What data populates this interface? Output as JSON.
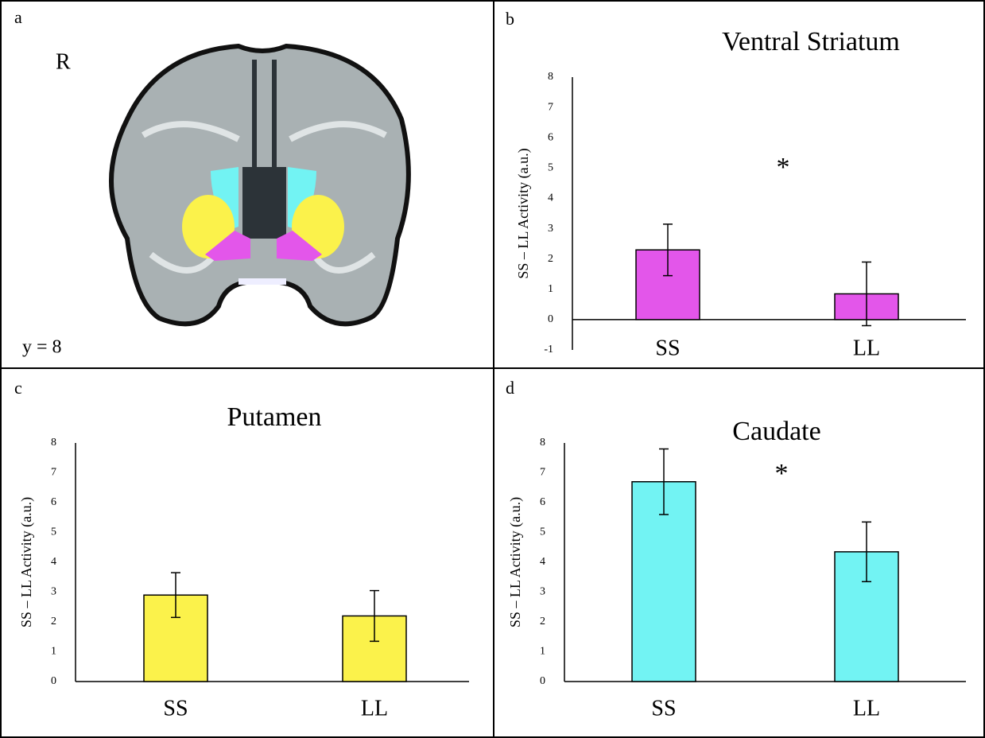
{
  "image_panel": {
    "panel_label": "a",
    "orientation": "R",
    "slice": "y = 8"
  },
  "chart_data": [
    {
      "type": "bar",
      "panel_label": "b",
      "title": "Ventral Striatum",
      "y_label": "SS – LL Activity (a.u.)",
      "categories": [
        "SS",
        "LL"
      ],
      "values": [
        2.3,
        0.85
      ],
      "errors": [
        0.85,
        1.05
      ],
      "color": "#e356ea",
      "ylim": [
        -1,
        8
      ],
      "yticks": [
        -1,
        0,
        1,
        2,
        3,
        4,
        5,
        6,
        7,
        8
      ],
      "annotation": "*",
      "grid": false
    },
    {
      "type": "bar",
      "panel_label": "c",
      "title": "Putamen",
      "y_label": "SS – LL Activity (a.u.)",
      "categories": [
        "SS",
        "LL"
      ],
      "values": [
        2.9,
        2.2
      ],
      "errors": [
        0.75,
        0.85
      ],
      "color": "#fbf24b",
      "ylim": [
        0,
        8
      ],
      "yticks": [
        0,
        1,
        2,
        3,
        4,
        5,
        6,
        7,
        8
      ],
      "grid": false
    },
    {
      "type": "bar",
      "panel_label": "d",
      "title": "Caudate",
      "y_label": "SS – LL Activity (a.u.)",
      "categories": [
        "SS",
        "LL"
      ],
      "values": [
        6.7,
        4.35
      ],
      "errors": [
        1.1,
        1.0
      ],
      "color": "#72f3f3",
      "ylim": [
        0,
        8
      ],
      "yticks": [
        0,
        1,
        2,
        3,
        4,
        5,
        6,
        7,
        8
      ],
      "annotation": "*",
      "grid": false
    }
  ]
}
